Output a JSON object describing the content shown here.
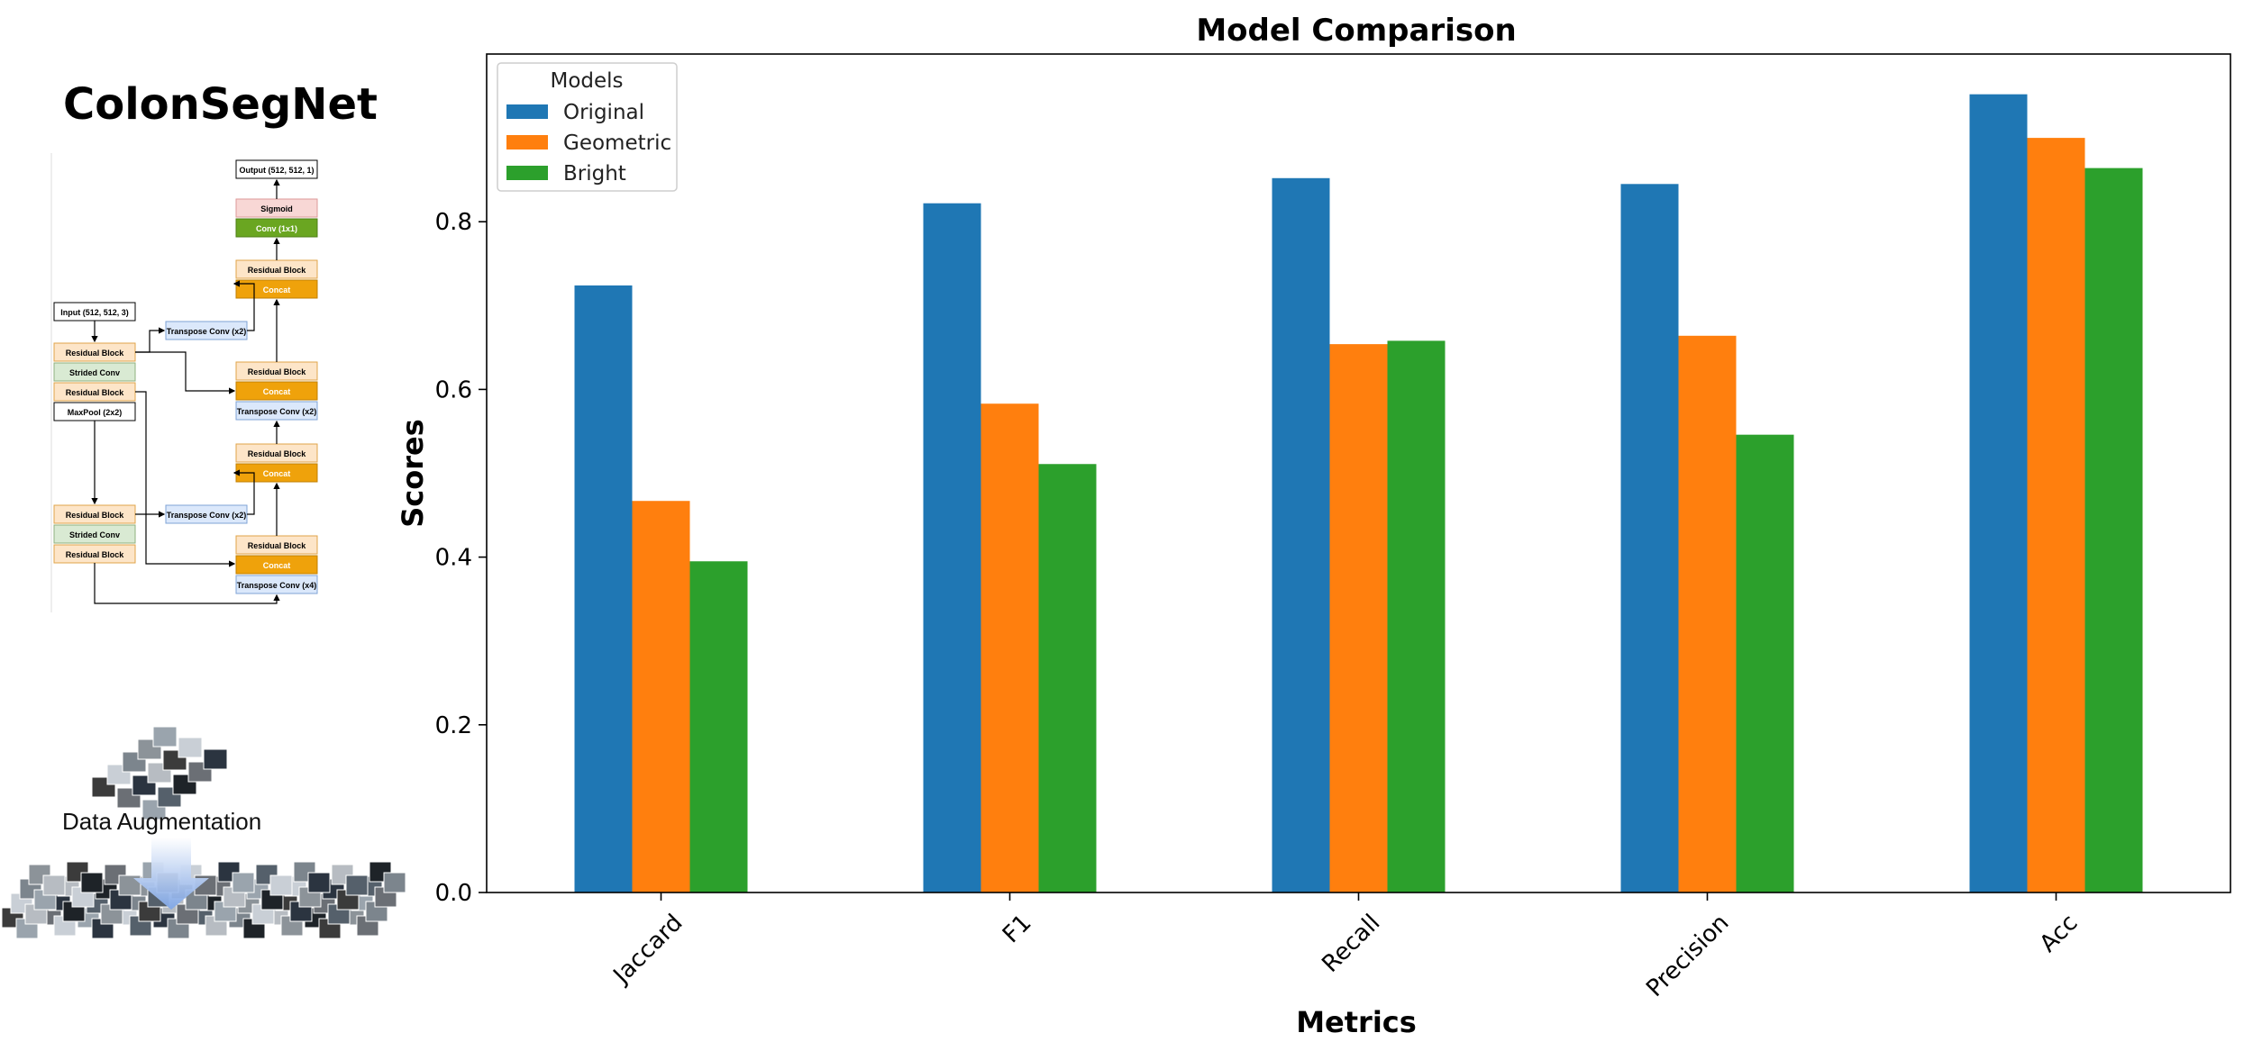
{
  "left": {
    "arch_title": "ColonSegNet",
    "aug_label": "Data Augmentation",
    "blocks": {
      "output": "Output (512, 512, 1)",
      "sigmoid": "Sigmoid",
      "conv1x1": "Conv (1x1)",
      "residual": "Residual Block",
      "concat": "Concat",
      "input": "Input (512, 512, 3)",
      "strided": "Strided Conv",
      "maxpool": "MaxPool (2x2)",
      "tconv2": "Transpose Conv (x2)",
      "tconv4": "Transpose Conv (x4)"
    }
  },
  "chart_data": {
    "type": "bar",
    "title": "Model Comparison",
    "xlabel": "Metrics",
    "ylabel": "Scores",
    "categories": [
      "Jaccard",
      "F1",
      "Recall",
      "Precision",
      "Acc"
    ],
    "series": [
      {
        "name": "Original",
        "color": "#1f77b4",
        "values": [
          0.724,
          0.822,
          0.852,
          0.845,
          0.952
        ]
      },
      {
        "name": "Geometric",
        "color": "#ff7f0e",
        "values": [
          0.467,
          0.583,
          0.654,
          0.664,
          0.9
        ]
      },
      {
        "name": "Bright",
        "color": "#2ca02c",
        "values": [
          0.395,
          0.511,
          0.658,
          0.546,
          0.864
        ]
      }
    ],
    "ylim": [
      0,
      1.0
    ],
    "yticks": [
      "0.0",
      "0.2",
      "0.4",
      "0.6",
      "0.8"
    ],
    "legend_title": "Models",
    "legend_position": "top-left",
    "grid": false
  }
}
